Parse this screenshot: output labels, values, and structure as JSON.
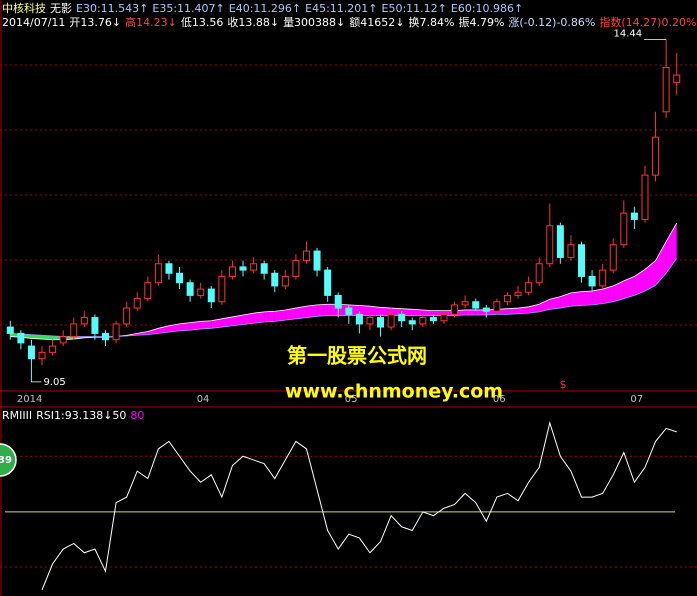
{
  "chart_data": [
    {
      "type": "candlestick",
      "stock": "中核科技",
      "mode": "无影",
      "date": "2014/07/11",
      "quote": [
        {
          "text": "开13.76↓",
          "color": "#ffffff"
        },
        {
          "text": "高14.23↓",
          "color": "#ff4040"
        },
        {
          "text": "低13.56",
          "color": "#ffffff"
        },
        {
          "text": "收13.88↓",
          "color": "#ffffff"
        },
        {
          "text": "量300388↓",
          "color": "#ffffff"
        },
        {
          "text": "额41652↓",
          "color": "#ffffff"
        },
        {
          "text": "换7.84%",
          "color": "#ffffff"
        },
        {
          "text": "振4.79%",
          "color": "#ffffff"
        },
        {
          "text": "涨(-0.12)-0.86%",
          "color": "#c8dcff"
        },
        {
          "text": "指数(14.27)0.20%",
          "color": "#ff4040"
        }
      ],
      "ema_color": "#a8c8ff",
      "ema": [
        {
          "name": "E30:",
          "value": 11.543,
          "arrow": "↑",
          "values": [
            9.75,
            9.74,
            9.72,
            9.71,
            9.7,
            9.7,
            9.71,
            9.73,
            9.74,
            9.74,
            9.75,
            9.77,
            9.8,
            9.83,
            9.88,
            9.92,
            9.95,
            9.97,
            9.99,
            10.0,
            10.03,
            10.06,
            10.09,
            10.12,
            10.14,
            10.15,
            10.17,
            10.2,
            10.23,
            10.25,
            10.26,
            10.26,
            10.25,
            10.24,
            10.23,
            10.21,
            10.2,
            10.19,
            10.18,
            10.17,
            10.16,
            10.16,
            10.16,
            10.17,
            10.17,
            10.17,
            10.18,
            10.19,
            10.2,
            10.22,
            10.26,
            10.34,
            10.38,
            10.44,
            10.46,
            10.47,
            10.5,
            10.55,
            10.63,
            10.7,
            10.81,
            10.95,
            11.25,
            11.543
          ]
        },
        {
          "name": "E35:",
          "value": 11.407,
          "arrow": "↑"
        },
        {
          "name": "E40:",
          "value": 11.296,
          "arrow": "↑"
        },
        {
          "name": "E45:",
          "value": 11.201,
          "arrow": "↑"
        },
        {
          "name": "E50:",
          "value": 11.12,
          "arrow": "↑"
        },
        {
          "name": "E60:",
          "value": 10.986,
          "arrow": "↑",
          "values": [
            9.8,
            9.79,
            9.78,
            9.77,
            9.76,
            9.75,
            9.75,
            9.75,
            9.75,
            9.75,
            9.75,
            9.76,
            9.77,
            9.78,
            9.8,
            9.82,
            9.84,
            9.85,
            9.87,
            9.88,
            9.9,
            9.92,
            9.94,
            9.96,
            9.98,
            9.99,
            10.01,
            10.03,
            10.05,
            10.07,
            10.08,
            10.08,
            10.08,
            10.08,
            10.08,
            10.08,
            10.08,
            10.08,
            10.08,
            10.08,
            10.08,
            10.08,
            10.08,
            10.09,
            10.09,
            10.09,
            10.1,
            10.1,
            10.11,
            10.12,
            10.14,
            10.18,
            10.2,
            10.23,
            10.24,
            10.25,
            10.27,
            10.3,
            10.35,
            10.4,
            10.47,
            10.56,
            10.75,
            10.986
          ]
        }
      ],
      "categories": [
        null,
        "2014",
        null,
        null,
        null,
        null,
        null,
        null,
        null,
        null,
        null,
        null,
        null,
        null,
        null,
        null,
        null,
        null,
        "04",
        null,
        null,
        null,
        null,
        null,
        null,
        null,
        null,
        null,
        null,
        null,
        null,
        null,
        "05",
        null,
        null,
        null,
        null,
        null,
        null,
        null,
        null,
        null,
        null,
        null,
        null,
        null,
        "06",
        null,
        null,
        null,
        null,
        null,
        null,
        null,
        null,
        null,
        null,
        null,
        null,
        "07",
        null,
        null,
        null,
        null
      ],
      "open": [
        9.9,
        9.8,
        9.6,
        9.4,
        9.5,
        9.65,
        9.75,
        9.95,
        10.05,
        9.8,
        9.7,
        9.95,
        10.2,
        10.35,
        10.6,
        10.9,
        10.75,
        10.6,
        10.4,
        10.5,
        10.3,
        10.7,
        10.85,
        10.8,
        10.9,
        10.75,
        10.55,
        10.7,
        10.95,
        11.1,
        10.8,
        10.4,
        10.2,
        10.1,
        9.95,
        10.05,
        9.9,
        10.1,
        10.0,
        9.95,
        10.05,
        10.0,
        10.1,
        10.25,
        10.3,
        10.2,
        10.15,
        10.3,
        10.4,
        10.45,
        10.6,
        10.9,
        11.5,
        11.0,
        11.2,
        10.7,
        10.55,
        10.8,
        11.2,
        11.7,
        11.6,
        12.3,
        13.3,
        13.76
      ],
      "high": [
        10.0,
        9.85,
        9.7,
        9.6,
        9.7,
        9.85,
        10.05,
        10.15,
        10.1,
        9.85,
        10.0,
        10.3,
        10.45,
        10.7,
        11.05,
        10.95,
        10.85,
        10.65,
        10.6,
        10.55,
        10.8,
        10.95,
        10.95,
        11.0,
        10.95,
        10.8,
        10.8,
        11.05,
        11.25,
        11.15,
        10.85,
        10.45,
        10.25,
        10.15,
        10.15,
        10.1,
        10.2,
        10.15,
        10.05,
        10.1,
        10.1,
        10.15,
        10.3,
        10.4,
        10.35,
        10.25,
        10.35,
        10.45,
        10.55,
        10.7,
        11.0,
        11.85,
        11.55,
        11.35,
        11.25,
        10.8,
        10.9,
        11.3,
        11.9,
        11.8,
        12.45,
        13.3,
        14.44,
        14.23
      ],
      "low": [
        9.7,
        9.55,
        9.05,
        9.3,
        9.45,
        9.6,
        9.7,
        9.9,
        9.7,
        9.6,
        9.65,
        9.9,
        10.15,
        10.3,
        10.55,
        10.65,
        10.5,
        10.3,
        10.35,
        10.2,
        10.25,
        10.65,
        10.7,
        10.75,
        10.65,
        10.45,
        10.5,
        10.65,
        10.9,
        10.7,
        10.3,
        10.05,
        9.95,
        9.8,
        9.85,
        9.75,
        9.85,
        9.9,
        9.85,
        9.9,
        9.95,
        9.95,
        10.05,
        10.2,
        10.15,
        10.05,
        10.1,
        10.25,
        10.35,
        10.4,
        10.55,
        10.85,
        10.9,
        10.95,
        10.6,
        10.45,
        10.5,
        10.75,
        11.15,
        11.45,
        11.55,
        12.2,
        13.2,
        13.56
      ],
      "close": [
        9.8,
        9.65,
        9.4,
        9.5,
        9.6,
        9.75,
        9.95,
        10.05,
        9.8,
        9.7,
        9.95,
        10.2,
        10.35,
        10.6,
        10.9,
        10.75,
        10.6,
        10.4,
        10.5,
        10.3,
        10.7,
        10.85,
        10.8,
        10.9,
        10.75,
        10.55,
        10.7,
        10.95,
        11.1,
        10.8,
        10.4,
        10.2,
        10.1,
        9.95,
        10.05,
        9.9,
        10.1,
        10.0,
        9.95,
        10.05,
        10.0,
        10.1,
        10.25,
        10.3,
        10.2,
        10.15,
        10.3,
        10.4,
        10.45,
        10.6,
        10.9,
        11.5,
        11.0,
        11.2,
        10.7,
        10.55,
        10.8,
        11.2,
        11.7,
        11.6,
        12.3,
        12.9,
        14.0,
        13.88
      ],
      "up_color": "#ff3232",
      "down_color": "#54fcfc",
      "band_up_color": "#ff00ff",
      "band_down_color": "#33dd55",
      "ylim": [
        8.89,
        14.75
      ],
      "grid": true,
      "signal": "$"
    },
    {
      "type": "line",
      "name": "RMIIII",
      "label": "RSI1:",
      "arrow": "↓",
      "levels": [
        50,
        80
      ],
      "level_colors": [
        "#ffffff",
        "#ff00ff"
      ],
      "level_line_colors": [
        "#d8d860",
        "#b00000"
      ],
      "color": "#ffffff",
      "badge": "39",
      "values": [
        null,
        null,
        null,
        8,
        22,
        30,
        33,
        28,
        30,
        18,
        55,
        58,
        72,
        68,
        84,
        88,
        80,
        72,
        66,
        70,
        58,
        75,
        80,
        78,
        76,
        68,
        78,
        88,
        84,
        62,
        40,
        30,
        38,
        36,
        28,
        34,
        48,
        42,
        40,
        50,
        48,
        52,
        54,
        60,
        55,
        45,
        58,
        60,
        56,
        66,
        74,
        98,
        80,
        72,
        58,
        58,
        60,
        70,
        82,
        66,
        74,
        88,
        95,
        93.138
      ],
      "ylim": [
        4.7,
        106
      ]
    }
  ],
  "watermark": [
    "第一股票公式网",
    "www.chnmoney.com"
  ]
}
